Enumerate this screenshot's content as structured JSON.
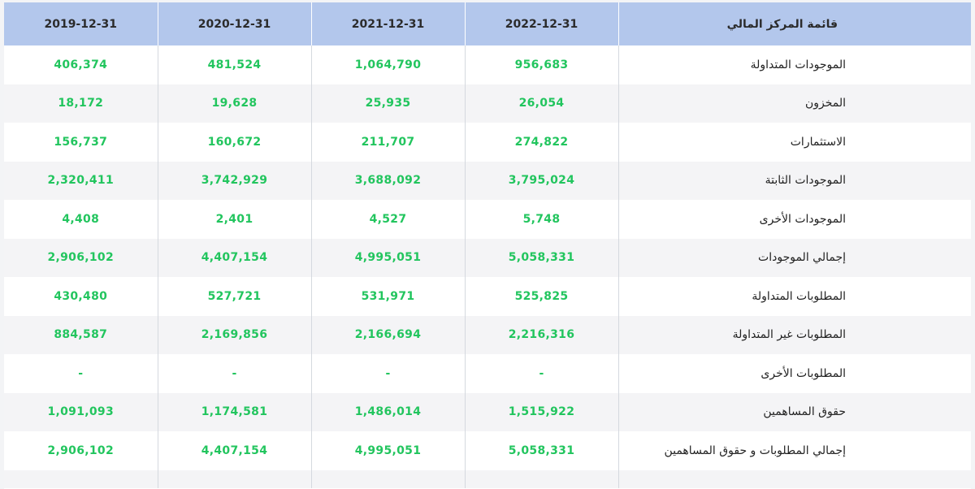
{
  "header": {
    "title": "قائمة المركز المالي",
    "periods": [
      "2019-12-31",
      "2020-12-31",
      "2021-12-31",
      "2022-12-31"
    ]
  },
  "rows": [
    {
      "label": "الموجودات المتداولة",
      "values": [
        "406,374",
        "481,524",
        "1,064,790",
        "956,683"
      ]
    },
    {
      "label": "المخزون",
      "values": [
        "18,172",
        "19,628",
        "25,935",
        "26,054"
      ]
    },
    {
      "label": "الاستثمارات",
      "values": [
        "156,737",
        "160,672",
        "211,707",
        "274,822"
      ]
    },
    {
      "label": "الموجودات الثابتة",
      "values": [
        "2,320,411",
        "3,742,929",
        "3,688,092",
        "3,795,024"
      ]
    },
    {
      "label": "الموجودات الأخرى",
      "values": [
        "4,408",
        "2,401",
        "4,527",
        "5,748"
      ]
    },
    {
      "label": "إجمالي الموجودات",
      "values": [
        "2,906,102",
        "4,407,154",
        "4,995,051",
        "5,058,331"
      ]
    },
    {
      "label": "المطلوبات المتداولة",
      "values": [
        "430,480",
        "527,721",
        "531,971",
        "525,825"
      ]
    },
    {
      "label": "المطلوبات غير المتداولة",
      "values": [
        "884,587",
        "2,169,856",
        "2,166,694",
        "2,216,316"
      ]
    },
    {
      "label": "المطلوبات الأخرى",
      "values": [
        "-",
        "-",
        "-",
        "-"
      ]
    },
    {
      "label": "حقوق المساهمين",
      "values": [
        "1,091,093",
        "1,174,581",
        "1,486,014",
        "1,515,922"
      ]
    },
    {
      "label": "إجمالي المطلوبات و حقوق المساهمين",
      "values": [
        "2,906,102",
        "4,407,154",
        "4,995,051",
        "5,058,331"
      ]
    }
  ]
}
